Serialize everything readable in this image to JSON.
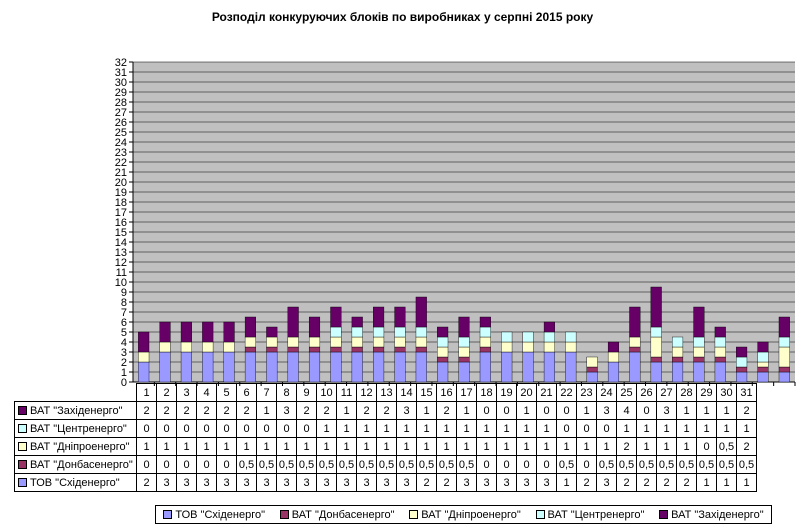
{
  "chart_data": {
    "type": "bar",
    "stacked": true,
    "title": "Розподіл конкуруючих  блоків по виробниках  у серпні 2015 року",
    "categories": [
      "1",
      "2",
      "3",
      "4",
      "5",
      "6",
      "7",
      "8",
      "9",
      "10",
      "11",
      "12",
      "13",
      "14",
      "15",
      "16",
      "17",
      "18",
      "19",
      "20",
      "21",
      "22",
      "23",
      "24",
      "25",
      "26",
      "27",
      "28",
      "29",
      "30",
      "31"
    ],
    "y_ticks": [
      "0",
      "1",
      "2",
      "3",
      "4",
      "5",
      "6",
      "7",
      "8",
      "9",
      "10",
      "11",
      "12",
      "13",
      "14",
      "15",
      "16",
      "17",
      "18",
      "19",
      "20",
      "21",
      "22",
      "23",
      "24",
      "25",
      "26",
      "27",
      "28",
      "29",
      "30",
      "31",
      "32"
    ],
    "ylim": [
      0,
      32
    ],
    "grid": true,
    "legend_position": "bottom",
    "series": [
      {
        "name": "ТОВ \"Східенерго\"",
        "key": "sx",
        "color": "#9999ff",
        "values": [
          2,
          3,
          3,
          3,
          3,
          3,
          3,
          3,
          3,
          3,
          3,
          3,
          3,
          3,
          2,
          2,
          3,
          3,
          3,
          3,
          3,
          1,
          2,
          3,
          2,
          2,
          2,
          2,
          1,
          1,
          1
        ],
        "labels": [
          "2",
          "3",
          "3",
          "3",
          "3",
          "3",
          "3",
          "3",
          "3",
          "3",
          "3",
          "3",
          "3",
          "3",
          "2",
          "2",
          "3",
          "3",
          "3",
          "3",
          "3",
          "1",
          "2",
          "3",
          "2",
          "2",
          "2",
          "2",
          "1",
          "1",
          "1"
        ]
      },
      {
        "name": "ВАТ \"Донбасенерго\"",
        "key": "db",
        "color": "#993366",
        "values": [
          0,
          0,
          0,
          0,
          0,
          0.5,
          0.5,
          0.5,
          0.5,
          0.5,
          0.5,
          0.5,
          0.5,
          0.5,
          0.5,
          0.5,
          0.5,
          0,
          0,
          0,
          0,
          0.5,
          0,
          0.5,
          0.5,
          0.5,
          0.5,
          0.5,
          0.5,
          0.5,
          0.5
        ],
        "labels": [
          "0",
          "0",
          "0",
          "0",
          "0",
          "0,5",
          "0,5",
          "0,5",
          "0,5",
          "0,5",
          "0,5",
          "0,5",
          "0,5",
          "0,5",
          "0,5",
          "0,5",
          "0,5",
          "0",
          "0",
          "0",
          "0",
          "0,5",
          "0",
          "0,5",
          "0,5",
          "0,5",
          "0,5",
          "0,5",
          "0,5",
          "0,5",
          "0,5"
        ]
      },
      {
        "name": "ВАТ \"Дніпроенерго\"",
        "key": "dn",
        "color": "#ffffcc",
        "values": [
          1,
          1,
          1,
          1,
          1,
          1,
          1,
          1,
          1,
          1,
          1,
          1,
          1,
          1,
          1,
          1,
          1,
          1,
          1,
          1,
          1,
          1,
          1,
          1,
          2,
          1,
          1,
          1,
          0,
          0.5,
          2
        ],
        "labels": [
          "1",
          "1",
          "1",
          "1",
          "1",
          "1",
          "1",
          "1",
          "1",
          "1",
          "1",
          "1",
          "1",
          "1",
          "1",
          "1",
          "1",
          "1",
          "1",
          "1",
          "1",
          "1",
          "1",
          "1",
          "2",
          "1",
          "1",
          "1",
          "0",
          "0,5",
          "2"
        ]
      },
      {
        "name": "ВАТ \"Центренерго\"",
        "key": "cn",
        "color": "#ccffff",
        "values": [
          0,
          0,
          0,
          0,
          0,
          0,
          0,
          0,
          0,
          1,
          1,
          1,
          1,
          1,
          1,
          1,
          1,
          1,
          1,
          1,
          1,
          0,
          0,
          0,
          1,
          1,
          1,
          1,
          1,
          1,
          1
        ],
        "labels": [
          "0",
          "0",
          "0",
          "0",
          "0",
          "0",
          "0",
          "0",
          "0",
          "1",
          "1",
          "1",
          "1",
          "1",
          "1",
          "1",
          "1",
          "1",
          "1",
          "1",
          "1",
          "0",
          "0",
          "0",
          "1",
          "1",
          "1",
          "1",
          "1",
          "1",
          "1"
        ]
      },
      {
        "name": "ВАТ \"Західенерго\"",
        "key": "zx",
        "color": "#660066",
        "values": [
          2,
          2,
          2,
          2,
          2,
          2,
          1,
          3,
          2,
          2,
          1,
          2,
          2,
          3,
          1,
          2,
          1,
          0,
          0,
          1,
          0,
          0,
          1,
          3,
          4,
          0,
          3,
          1,
          1,
          1,
          2
        ],
        "labels": [
          "2",
          "2",
          "2",
          "2",
          "2",
          "2",
          "1",
          "3",
          "2",
          "2",
          "1",
          "2",
          "2",
          "3",
          "1",
          "2",
          "1",
          "0",
          "0",
          "1",
          "0",
          "0",
          "1",
          "3",
          "4",
          "0",
          "3",
          "1",
          "1",
          "1",
          "2"
        ]
      }
    ]
  },
  "table_order": [
    "zx",
    "cn",
    "dn",
    "db",
    "sx"
  ],
  "legend_order": [
    "sx",
    "db",
    "dn",
    "cn",
    "zx"
  ]
}
